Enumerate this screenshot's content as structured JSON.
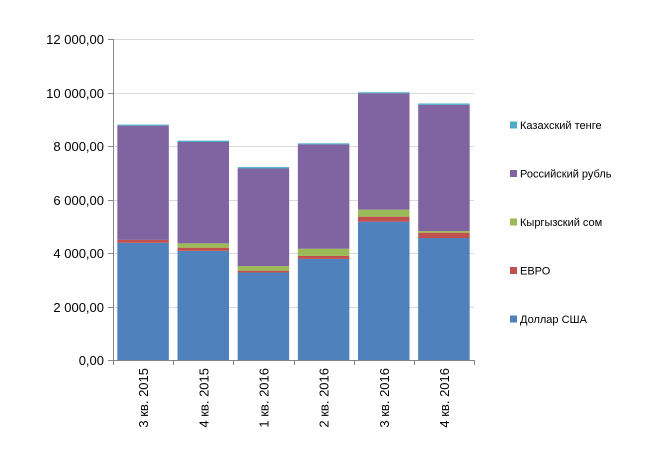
{
  "chart_data": {
    "type": "bar",
    "stacked": true,
    "title": "",
    "xlabel": "",
    "ylabel": "",
    "categories": [
      "3 кв. 2015",
      "4 кв. 2015",
      "1 кв. 2016",
      "2 кв. 2016",
      "3 кв. 2016",
      "4 кв. 2016"
    ],
    "ylim": [
      0,
      12000
    ],
    "y_ticks": [
      0,
      2000,
      4000,
      6000,
      8000,
      10000,
      12000
    ],
    "y_tick_labels": [
      "0,00",
      "2 000,00",
      "4 000,00",
      "6 000,00",
      "8 000,00",
      "10 000,00",
      "12 000,00"
    ],
    "grid": true,
    "legend_position": "right",
    "series": [
      {
        "name": "Доллар США",
        "color": "#4F81BD",
        "values": [
          4380,
          4080,
          3270,
          3780,
          5170,
          4560
        ]
      },
      {
        "name": "ЕВРО",
        "color": "#C0504D",
        "values": [
          110,
          120,
          70,
          110,
          190,
          200
        ]
      },
      {
        "name": "Кыргызский сом",
        "color": "#9BBB59",
        "values": [
          0,
          160,
          170,
          270,
          260,
          60
        ]
      },
      {
        "name": "Российский  рубль",
        "color": "#8064A2",
        "values": [
          4270,
          3790,
          3650,
          3900,
          4350,
          4720
        ]
      },
      {
        "name": "Казахский тенге",
        "color": "#4BACC6",
        "values": [
          40,
          50,
          50,
          40,
          40,
          50
        ]
      }
    ]
  }
}
